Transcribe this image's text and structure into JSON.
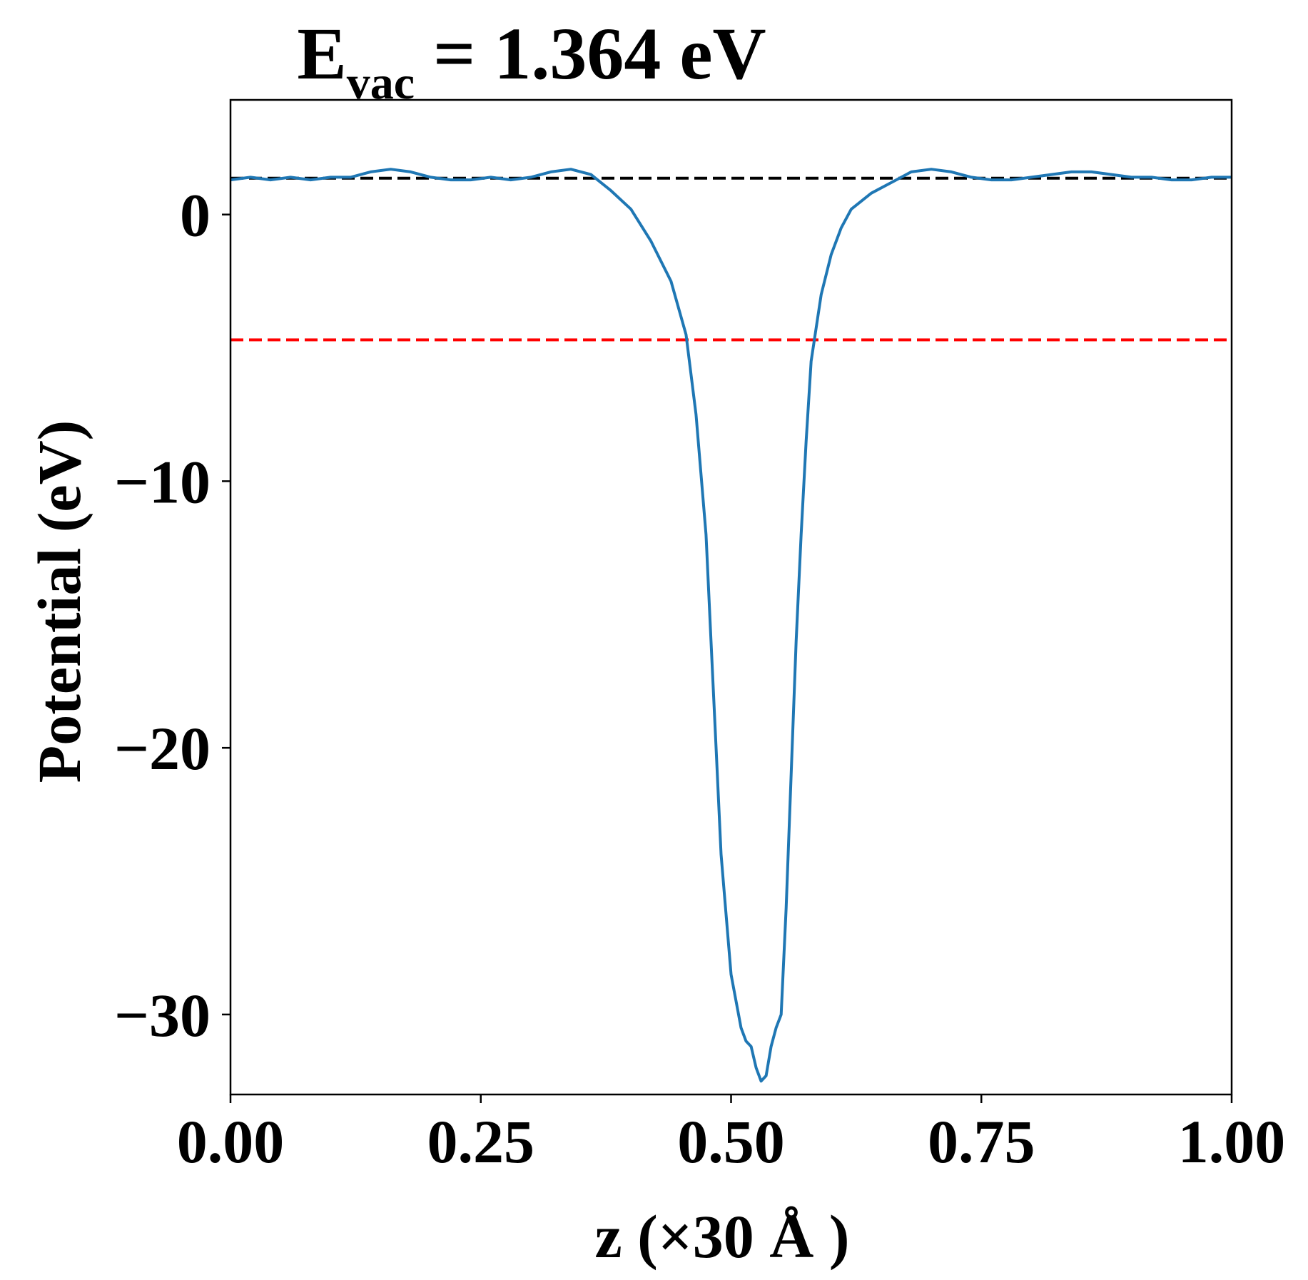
{
  "chart_data": {
    "type": "line",
    "title": {
      "main": "E",
      "subscript": "vac",
      "rest": " = 1.364 eV"
    },
    "xlabel": "z (×30 Å )",
    "ylabel": "Potential (eV)",
    "xlim": [
      0.0,
      1.0
    ],
    "ylim": [
      -33.0,
      4.3
    ],
    "xticks": [
      0.0,
      0.25,
      0.5,
      0.75,
      1.0
    ],
    "xtick_labels": [
      "0.00",
      "0.25",
      "0.50",
      "0.75",
      "1.00"
    ],
    "yticks": [
      0,
      -10,
      -20,
      -30
    ],
    "ytick_labels": [
      "0",
      "−10",
      "−20",
      "−30"
    ],
    "grid": false,
    "series": [
      {
        "color": "#1f77b4",
        "x": [
          0.0,
          0.02,
          0.04,
          0.06,
          0.08,
          0.1,
          0.12,
          0.14,
          0.16,
          0.18,
          0.2,
          0.22,
          0.24,
          0.26,
          0.28,
          0.3,
          0.32,
          0.34,
          0.36,
          0.38,
          0.4,
          0.42,
          0.44,
          0.455,
          0.465,
          0.475,
          0.48,
          0.485,
          0.49,
          0.5,
          0.51,
          0.515,
          0.52,
          0.525,
          0.53,
          0.535,
          0.54,
          0.545,
          0.55,
          0.555,
          0.56,
          0.565,
          0.57,
          0.575,
          0.58,
          0.59,
          0.6,
          0.61,
          0.62,
          0.64,
          0.66,
          0.68,
          0.7,
          0.72,
          0.74,
          0.76,
          0.78,
          0.8,
          0.82,
          0.84,
          0.86,
          0.88,
          0.9,
          0.92,
          0.94,
          0.96,
          0.98,
          1.0
        ],
        "y": [
          1.3,
          1.4,
          1.3,
          1.4,
          1.3,
          1.4,
          1.4,
          1.6,
          1.7,
          1.6,
          1.4,
          1.3,
          1.3,
          1.4,
          1.3,
          1.4,
          1.6,
          1.7,
          1.5,
          0.9,
          0.2,
          -1.0,
          -2.5,
          -4.5,
          -7.5,
          -12.0,
          -16.0,
          -20.0,
          -24.0,
          -28.5,
          -30.5,
          -31.0,
          -31.2,
          -32.0,
          -32.5,
          -32.3,
          -31.2,
          -30.5,
          -30.0,
          -26.0,
          -21.0,
          -16.0,
          -12.0,
          -8.5,
          -5.5,
          -3.0,
          -1.5,
          -0.5,
          0.2,
          0.8,
          1.2,
          1.6,
          1.7,
          1.6,
          1.4,
          1.3,
          1.3,
          1.4,
          1.5,
          1.6,
          1.6,
          1.5,
          1.4,
          1.4,
          1.3,
          1.3,
          1.4,
          1.4
        ]
      }
    ],
    "reference_lines": [
      {
        "y": 1.364,
        "color": "#000000",
        "style": "dashed"
      },
      {
        "y": -4.7,
        "color": "#ff0000",
        "style": "dashed"
      }
    ]
  }
}
